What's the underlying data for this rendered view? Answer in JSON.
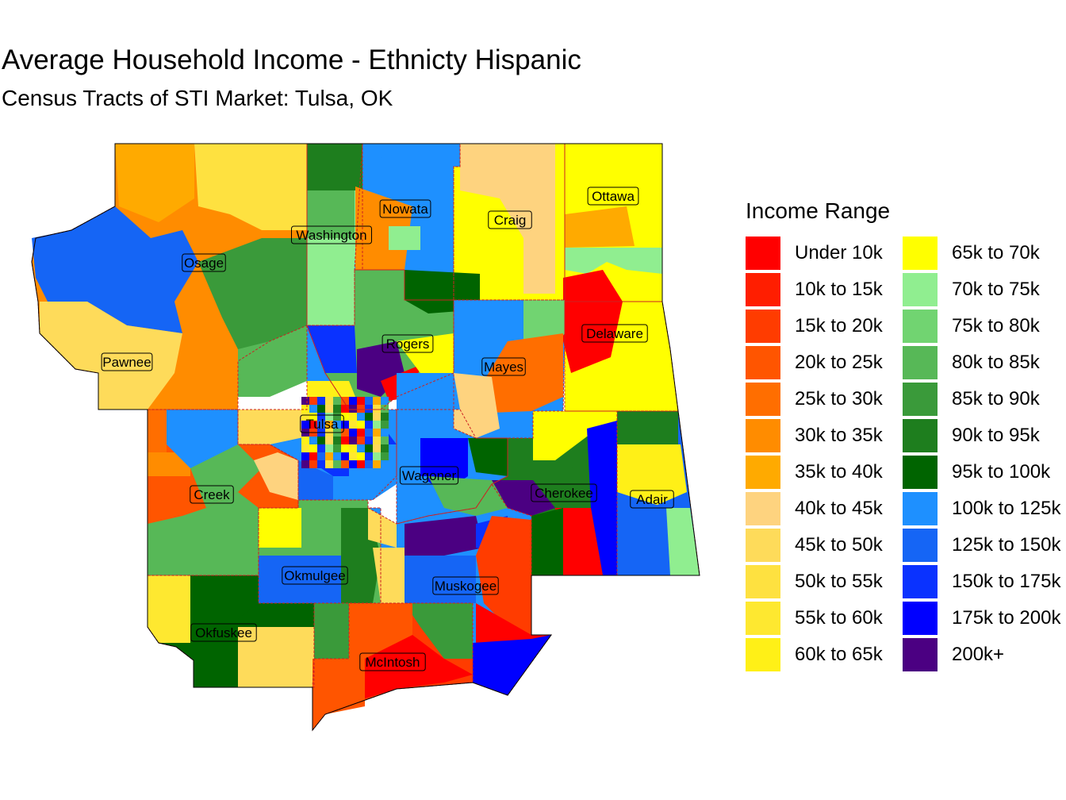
{
  "title": "Average Household Income - Ethnicty Hispanic",
  "subtitle": "Census Tracts of STI Market: Tulsa, OK",
  "legend": {
    "title": "Income Range",
    "items": [
      {
        "label": "Under 10k",
        "color": "#ff0000"
      },
      {
        "label": "10k to 15k",
        "color": "#ff1e00"
      },
      {
        "label": "15k to 20k",
        "color": "#ff3c00"
      },
      {
        "label": "20k to 25k",
        "color": "#ff5500"
      },
      {
        "label": "25k to 30k",
        "color": "#ff6e00"
      },
      {
        "label": "30k to 35k",
        "color": "#ff8c00"
      },
      {
        "label": "35k to 40k",
        "color": "#ffaa00"
      },
      {
        "label": "40k to 45k",
        "color": "#fed37f"
      },
      {
        "label": "45k to 50k",
        "color": "#fedb5a"
      },
      {
        "label": "50k to 55k",
        "color": "#fee140"
      },
      {
        "label": "55k to 60k",
        "color": "#fee830"
      },
      {
        "label": "60k to 65k",
        "color": "#fff017"
      },
      {
        "label": "65k to 70k",
        "color": "#ffff00"
      },
      {
        "label": "70k to 75k",
        "color": "#90ee90"
      },
      {
        "label": "75k to 80k",
        "color": "#71d471"
      },
      {
        "label": "80k to 85k",
        "color": "#57b857"
      },
      {
        "label": "85k to 90k",
        "color": "#3a9a3a"
      },
      {
        "label": "90k to 95k",
        "color": "#1e7e1e"
      },
      {
        "label": "95k to 100k",
        "color": "#006400"
      },
      {
        "label": "100k to 125k",
        "color": "#1e90ff"
      },
      {
        "label": "125k to 150k",
        "color": "#1565f5"
      },
      {
        "label": "150k to 175k",
        "color": "#0a32ff"
      },
      {
        "label": "175k to 200k",
        "color": "#0000ff"
      },
      {
        "label": "200k+",
        "color": "#4b0082"
      }
    ]
  },
  "counties": [
    {
      "name": "Washington",
      "color": "#90ee90"
    },
    {
      "name": "Nowata",
      "color": "#1e90ff"
    },
    {
      "name": "Craig",
      "color": "#ffff00"
    },
    {
      "name": "Ottawa",
      "color": "#ffff00"
    },
    {
      "name": "Osage",
      "color": "#ff8c00"
    },
    {
      "name": "Pawnee",
      "color": "#fedb5a"
    },
    {
      "name": "Rogers",
      "color": "#57b857"
    },
    {
      "name": "Mayes",
      "color": "#1e90ff"
    },
    {
      "name": "Delaware",
      "color": "#ffff00"
    },
    {
      "name": "Tulsa",
      "color": "#1e90ff"
    },
    {
      "name": "Creek",
      "color": "#ff5500"
    },
    {
      "name": "Wagoner",
      "color": "#1e90ff"
    },
    {
      "name": "Cherokee",
      "color": "#1e7e1e"
    },
    {
      "name": "Adair",
      "color": "#1565f5"
    },
    {
      "name": "Okmulgee",
      "color": "#57b857"
    },
    {
      "name": "Muskogee",
      "color": "#1e90ff"
    },
    {
      "name": "Okfuskee",
      "color": "#006400"
    },
    {
      "name": "McIntosh",
      "color": "#ff3c00"
    }
  ]
}
